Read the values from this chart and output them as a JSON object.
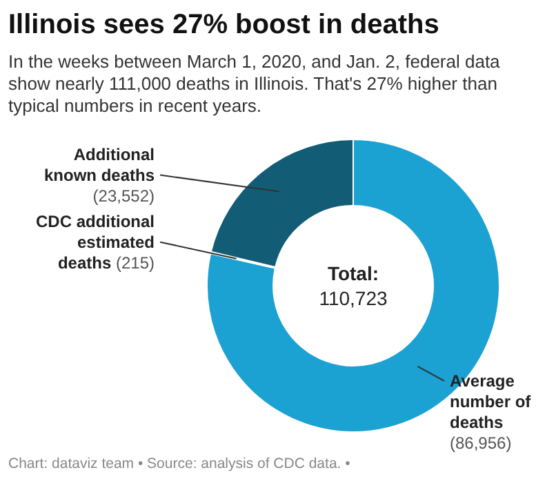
{
  "chart_data": {
    "type": "donut",
    "title": "Illinois sees 27% boost in deaths",
    "subtitle": "In the weeks between March 1, 2020, and Jan. 2, federal data show nearly 111,000 deaths in Illinois. That's 27% higher than typical numbers in recent years.",
    "categories": [
      "Average number of deaths",
      "CDC additional estimated deaths",
      "Additional known deaths"
    ],
    "values": [
      86956,
      215,
      23552
    ],
    "value_labels": [
      "(86,956)",
      "(215)",
      "(23,552)"
    ],
    "colors": [
      "#1ba1d2",
      "#6cc4e4",
      "#135c75"
    ],
    "annotations": [
      "Total:",
      "110,723",
      "Chart: dataviz team • Source: analysis of CDC data. •"
    ]
  }
}
